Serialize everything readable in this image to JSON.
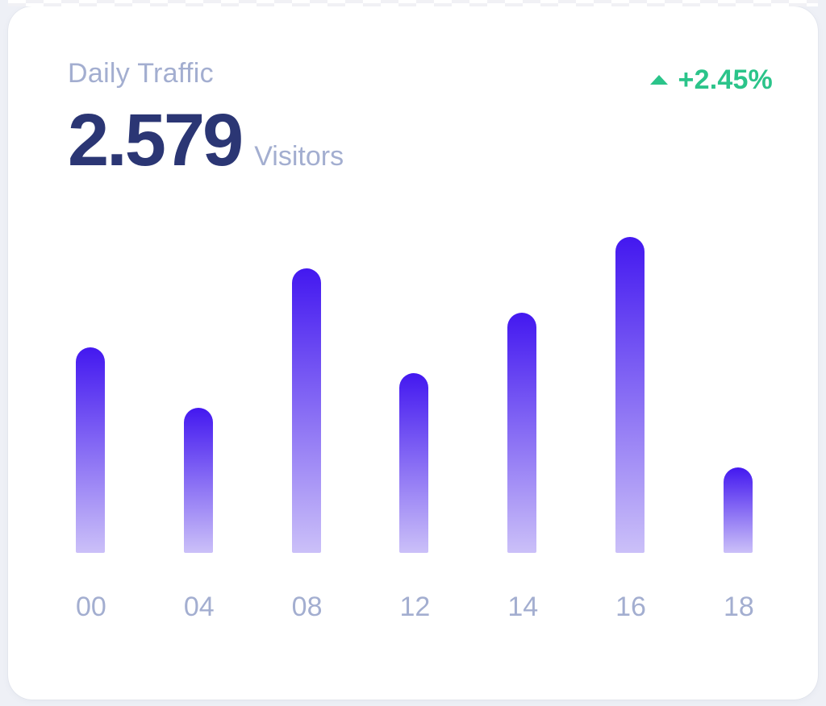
{
  "page": {
    "background": "#eef0f6"
  },
  "card": {
    "title": "Daily Traffic",
    "value": "2.579",
    "unit": "Visitors",
    "delta": {
      "text": "+2.45%",
      "direction": "up"
    },
    "colors": {
      "muted": "#A3AED0",
      "value_text": "#2B3674",
      "positive": "#2BC48A",
      "bar_top": "#4318F0",
      "bar_bottom": "#CBC0F8"
    }
  },
  "chart_data": {
    "type": "bar",
    "title": "Daily Traffic",
    "categories": [
      "00",
      "04",
      "08",
      "12",
      "14",
      "16",
      "18"
    ],
    "values": [
      65,
      46,
      90,
      57,
      76,
      100,
      27
    ],
    "values_note": "estimated relative heights as % of tallest bar; chart shows no y-axis",
    "xlabel": "",
    "ylabel": "",
    "ylim": [
      0,
      100
    ],
    "grid": false,
    "legend": false,
    "bar_gradient": [
      "#4318F0",
      "#CBC0F8"
    ]
  }
}
